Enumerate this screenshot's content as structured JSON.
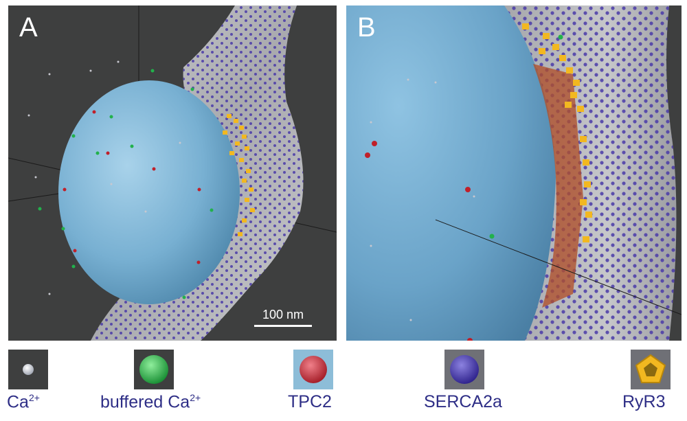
{
  "panels": {
    "a": {
      "label": "A",
      "scale_bar": "100 nm"
    },
    "b": {
      "label": "B"
    }
  },
  "legend": [
    {
      "label": "Ca",
      "superscript": "2+",
      "icon": "grey-sphere-icon",
      "color": "#c8c8d0"
    },
    {
      "label": "buffered Ca",
      "superscript": "2+",
      "icon": "green-sphere-icon",
      "color": "#22b14c"
    },
    {
      "label": "TPC2",
      "superscript": "",
      "icon": "red-sphere-icon",
      "color": "#c0202a"
    },
    {
      "label": "SERCA2a",
      "superscript": "",
      "icon": "blue-sphere-icon",
      "color": "#3a2ca0"
    },
    {
      "label": "RyR3",
      "superscript": "",
      "icon": "yellow-pentagon-icon",
      "color": "#f2b820"
    }
  ],
  "colors": {
    "background": "#3e3f3f",
    "vesicle": "#7fb2d4",
    "membrane": "#b8b8bc",
    "text": "#2e2e86"
  }
}
